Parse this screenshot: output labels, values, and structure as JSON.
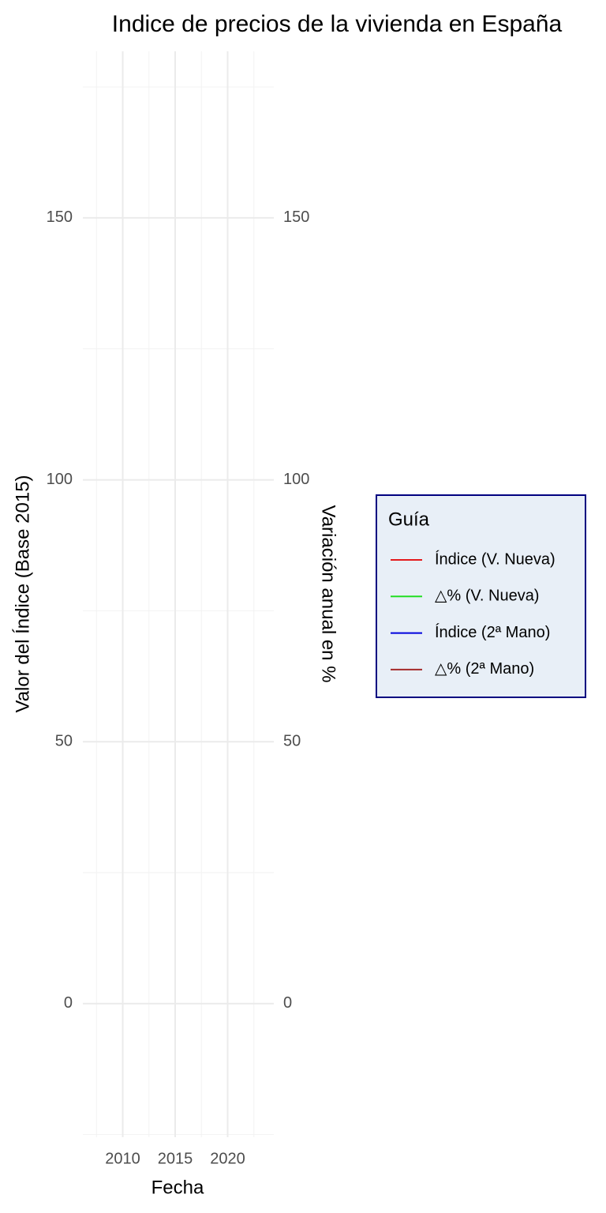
{
  "chart_data": {
    "type": "line",
    "title": "Indice de precios de la vivienda en España",
    "x_label": "Fecha",
    "y_label": "Valor del Índice (Base 2015)",
    "y2_label": "Variación anual en %",
    "legend_title": "Guía",
    "legend_position": "right",
    "grid": true,
    "x": [],
    "series": [
      {
        "name": "Índice (V. Nueva)",
        "color": "#e41a1c",
        "values": []
      },
      {
        "name": "△% (V. Nueva)",
        "color": "#22dd22",
        "values": [],
        "axis": "y2"
      },
      {
        "name": "Índice (2ª Mano)",
        "color": "#0000dd",
        "values": []
      },
      {
        "name": "△% (2ª Mano)",
        "color": "#a52a2a",
        "values": [],
        "axis": "y2"
      }
    ],
    "xlim": [
      2006.2,
      2024.4
    ],
    "xticks": [
      2010,
      2015,
      2020
    ],
    "ylim": [
      -25.5,
      181.8
    ],
    "yticks": [
      0,
      50,
      100,
      150
    ],
    "y2lim": [
      -25.5,
      181.8
    ],
    "y2ticks": [
      0,
      50,
      100,
      150
    ]
  }
}
